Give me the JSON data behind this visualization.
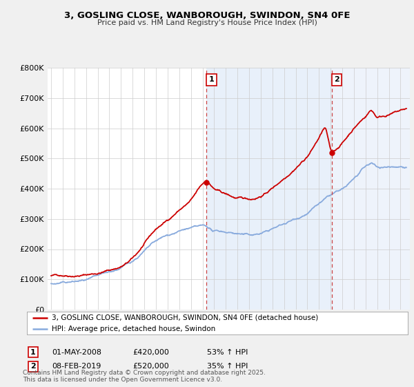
{
  "title": "3, GOSLING CLOSE, WANBOROUGH, SWINDON, SN4 0FE",
  "subtitle": "Price paid vs. HM Land Registry's House Price Index (HPI)",
  "legend_label_red": "3, GOSLING CLOSE, WANBOROUGH, SWINDON, SN4 0FE (detached house)",
  "legend_label_blue": "HPI: Average price, detached house, Swindon",
  "annotation1_date": "01-MAY-2008",
  "annotation1_price": "£420,000",
  "annotation1_hpi": "53% ↑ HPI",
  "annotation2_date": "08-FEB-2019",
  "annotation2_price": "£520,000",
  "annotation2_hpi": "35% ↑ HPI",
  "footer": "Contains HM Land Registry data © Crown copyright and database right 2025.\nThis data is licensed under the Open Government Licence v3.0.",
  "vline1_x": 2008.33,
  "vline2_x": 2019.1,
  "marker1_red_x": 2008.33,
  "marker1_red_y": 420000,
  "marker2_red_x": 2019.1,
  "marker2_red_y": 520000,
  "ylim": [
    0,
    800000
  ],
  "xlim": [
    1994.7,
    2025.8
  ],
  "yticks": [
    0,
    100000,
    200000,
    300000,
    400000,
    500000,
    600000,
    700000,
    800000
  ],
  "ytick_labels": [
    "£0",
    "£100K",
    "£200K",
    "£300K",
    "£400K",
    "£500K",
    "£600K",
    "£700K",
    "£800K"
  ],
  "xticks": [
    1995,
    1996,
    1997,
    1998,
    1999,
    2000,
    2001,
    2002,
    2003,
    2004,
    2005,
    2006,
    2007,
    2008,
    2009,
    2010,
    2011,
    2012,
    2013,
    2014,
    2015,
    2016,
    2017,
    2018,
    2019,
    2020,
    2021,
    2022,
    2023,
    2024,
    2025
  ],
  "bg_color": "#f0f0f0",
  "plot_bg_color": "#eef3fb",
  "plot_left_bg": "#ffffff",
  "red_color": "#cc0000",
  "blue_color": "#88aadd",
  "vline_color": "#cc4444",
  "shade_color": "#dde8f5"
}
